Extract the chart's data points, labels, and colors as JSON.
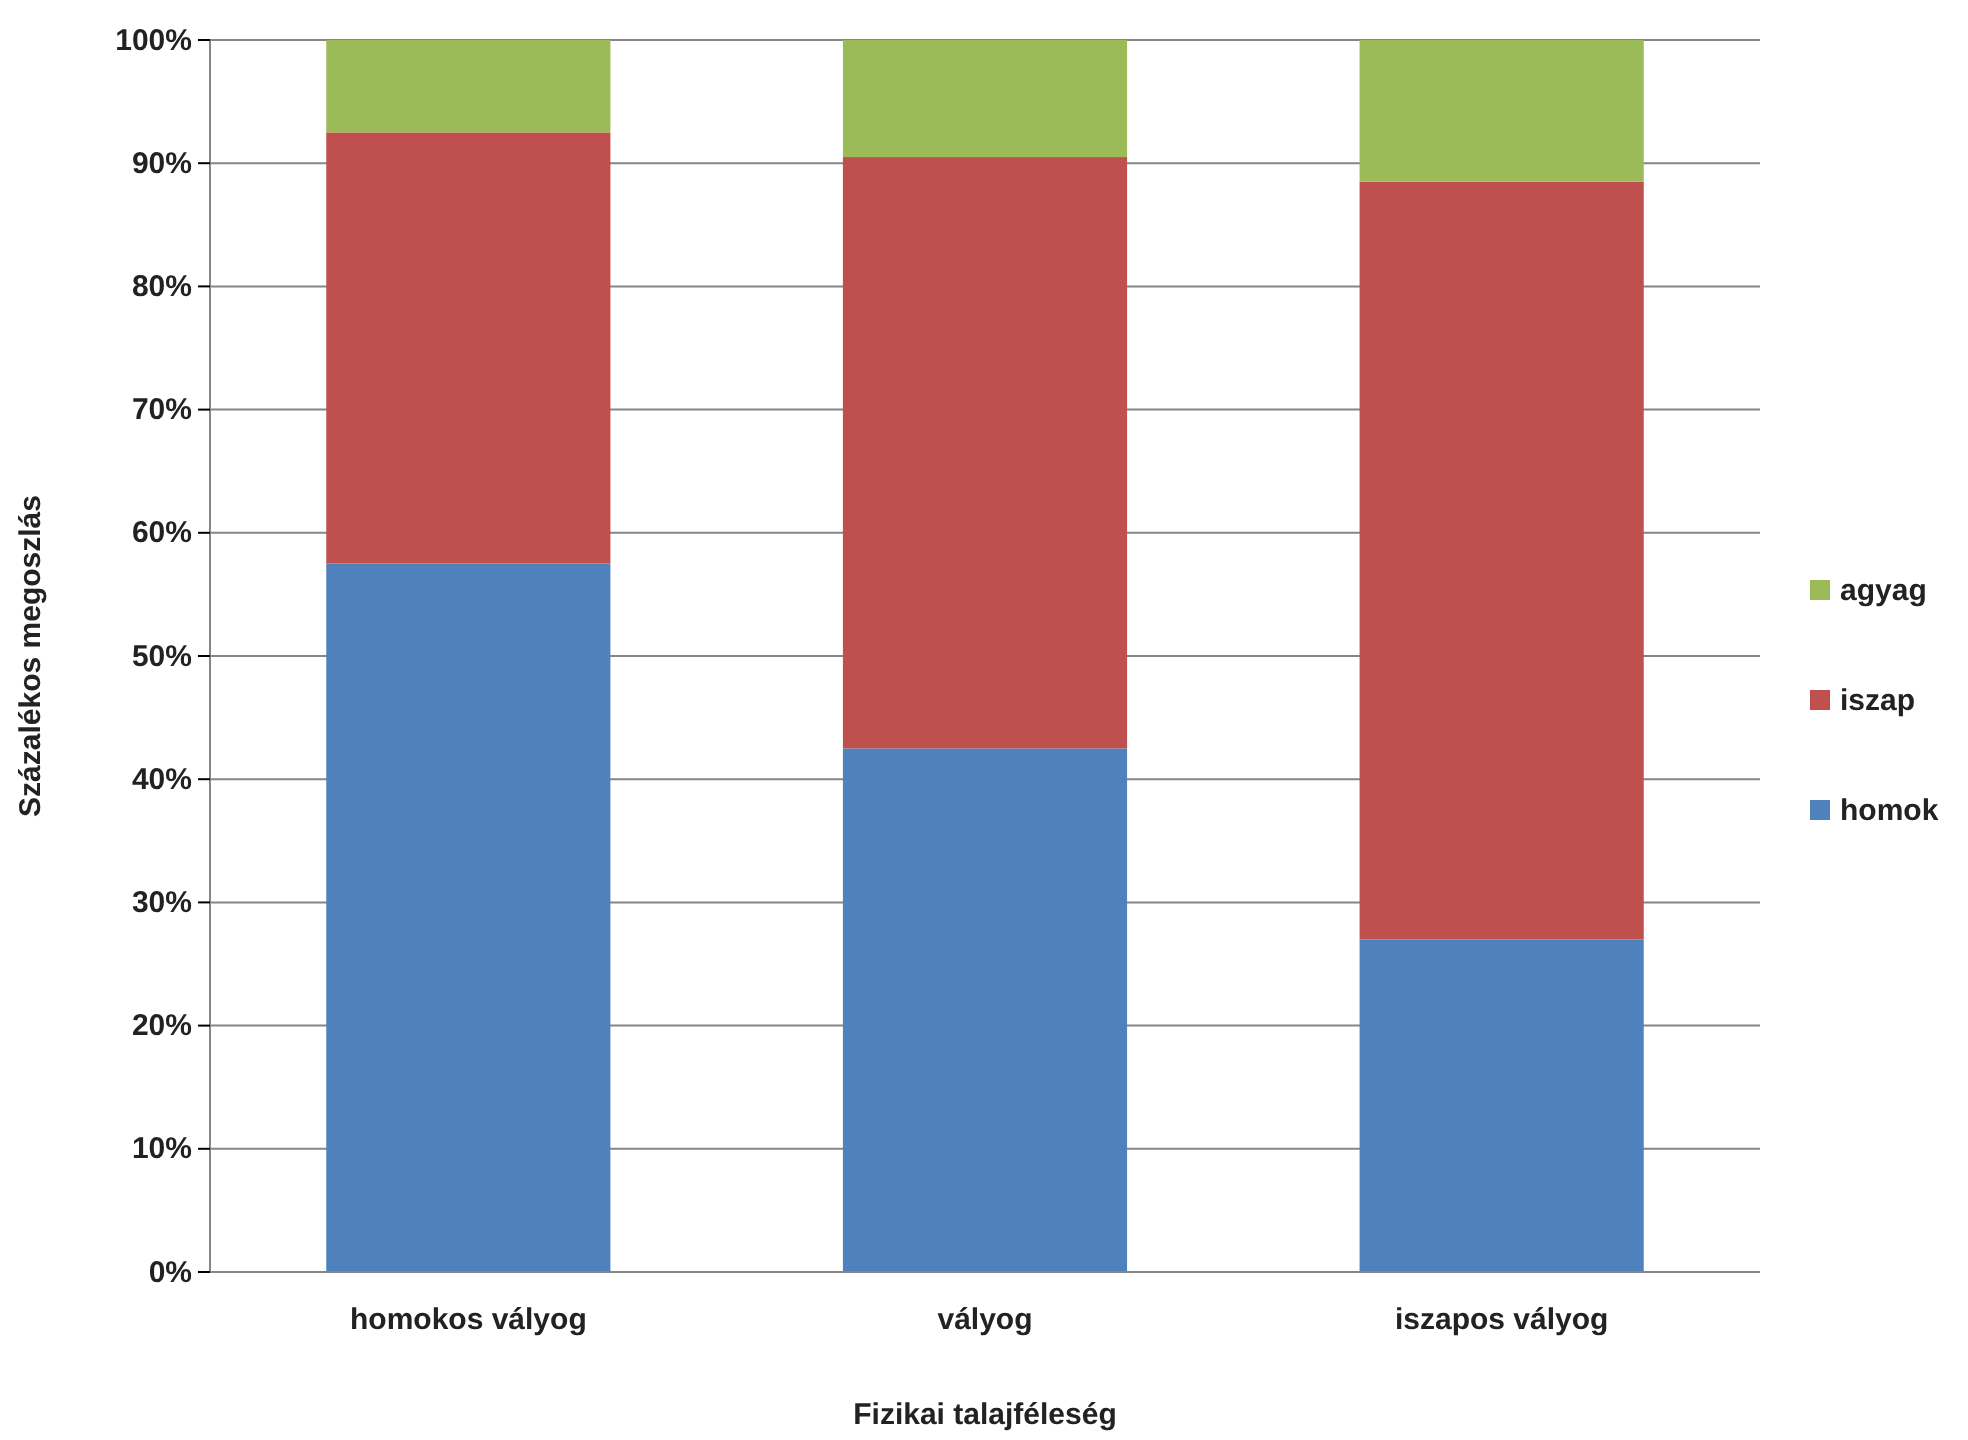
{
  "chart_data": {
    "type": "bar",
    "stacked": true,
    "xlabel": "Fizikai talajféleség",
    "ylabel": "Százalékos megoszlás",
    "categories": [
      "homokos vályog",
      "vályog",
      "iszapos vályog"
    ],
    "series": [
      {
        "name": "homok",
        "color": "#4f81bd",
        "values": [
          57.5,
          42.5,
          27
        ]
      },
      {
        "name": "iszap",
        "color": "#c0504d",
        "values": [
          35,
          48,
          61.5
        ]
      },
      {
        "name": "agyag",
        "color": "#9bbb59",
        "values": [
          7.5,
          9.5,
          11.5
        ]
      }
    ],
    "ylim": [
      0,
      100
    ],
    "yticks": [
      {
        "value": 0,
        "label": "0%"
      },
      {
        "value": 10,
        "label": "10%"
      },
      {
        "value": 20,
        "label": "20%"
      },
      {
        "value": 30,
        "label": "30%"
      },
      {
        "value": 40,
        "label": "40%"
      },
      {
        "value": 50,
        "label": "50%"
      },
      {
        "value": 60,
        "label": "60%"
      },
      {
        "value": 70,
        "label": "70%"
      },
      {
        "value": 80,
        "label": "80%"
      },
      {
        "value": 90,
        "label": "90%"
      },
      {
        "value": 100,
        "label": "100%"
      }
    ],
    "grid": "y",
    "legend": "right"
  }
}
